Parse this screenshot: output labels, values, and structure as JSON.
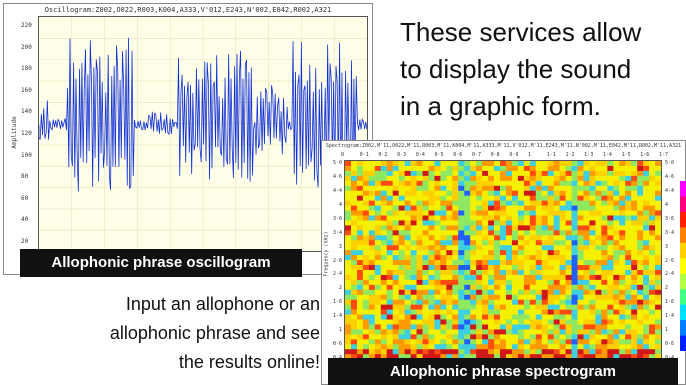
{
  "headline": {
    "lines": [
      "These services allow",
      "to display the sound",
      "in a graphic form."
    ]
  },
  "instruction": {
    "lines": [
      "Input an allophone or an",
      "allophonic phrase and see",
      "the results online!"
    ]
  },
  "oscillogram": {
    "title": "Oscillogram:Z002,O022,R003,K004,A333,V'012,E243,N'002,E042,R002,A321",
    "caption": "Allophonic phrase oscillogram",
    "ylabel": "Amplitude",
    "yticks": [
      "220",
      "200",
      "180",
      "160",
      "140",
      "120",
      "100",
      "80",
      "60",
      "40",
      "20"
    ]
  },
  "spectrogram": {
    "title": "Spectrogram:Z002,M'11,O022,M'11,R003,M'11,K004,M'11,A333,M'11,V'012,M'11,E243,M'11,N'002,M'11,E042,M'11,R002,M'11,A321",
    "caption": "Allophonic phrase spectrogram",
    "ylabel": "Frequency (kHz)",
    "xticks": [
      "0",
      "0·1",
      "0·2",
      "0·3",
      "0·4",
      "0·5",
      "0·6",
      "0·7",
      "0·8",
      "0·9",
      "1",
      "1·1",
      "1·2",
      "1·3",
      "1·4",
      "1·5",
      "1·6",
      "1·7"
    ],
    "yticks": [
      "5·0",
      "4·6",
      "4·4",
      "4",
      "3·6",
      "3·4",
      "3",
      "2·6",
      "2·4",
      "2",
      "1·6",
      "1·4",
      "1",
      "0·6",
      "0·4",
      "0"
    ],
    "colorbar": [
      "#ff00ff",
      "#ff0080",
      "#ff2000",
      "#ff8000",
      "#ffd000",
      "#ffff00",
      "#b0ff40",
      "#40ff80",
      "#00e0ff",
      "#0080ff",
      "#0020ff"
    ]
  }
}
